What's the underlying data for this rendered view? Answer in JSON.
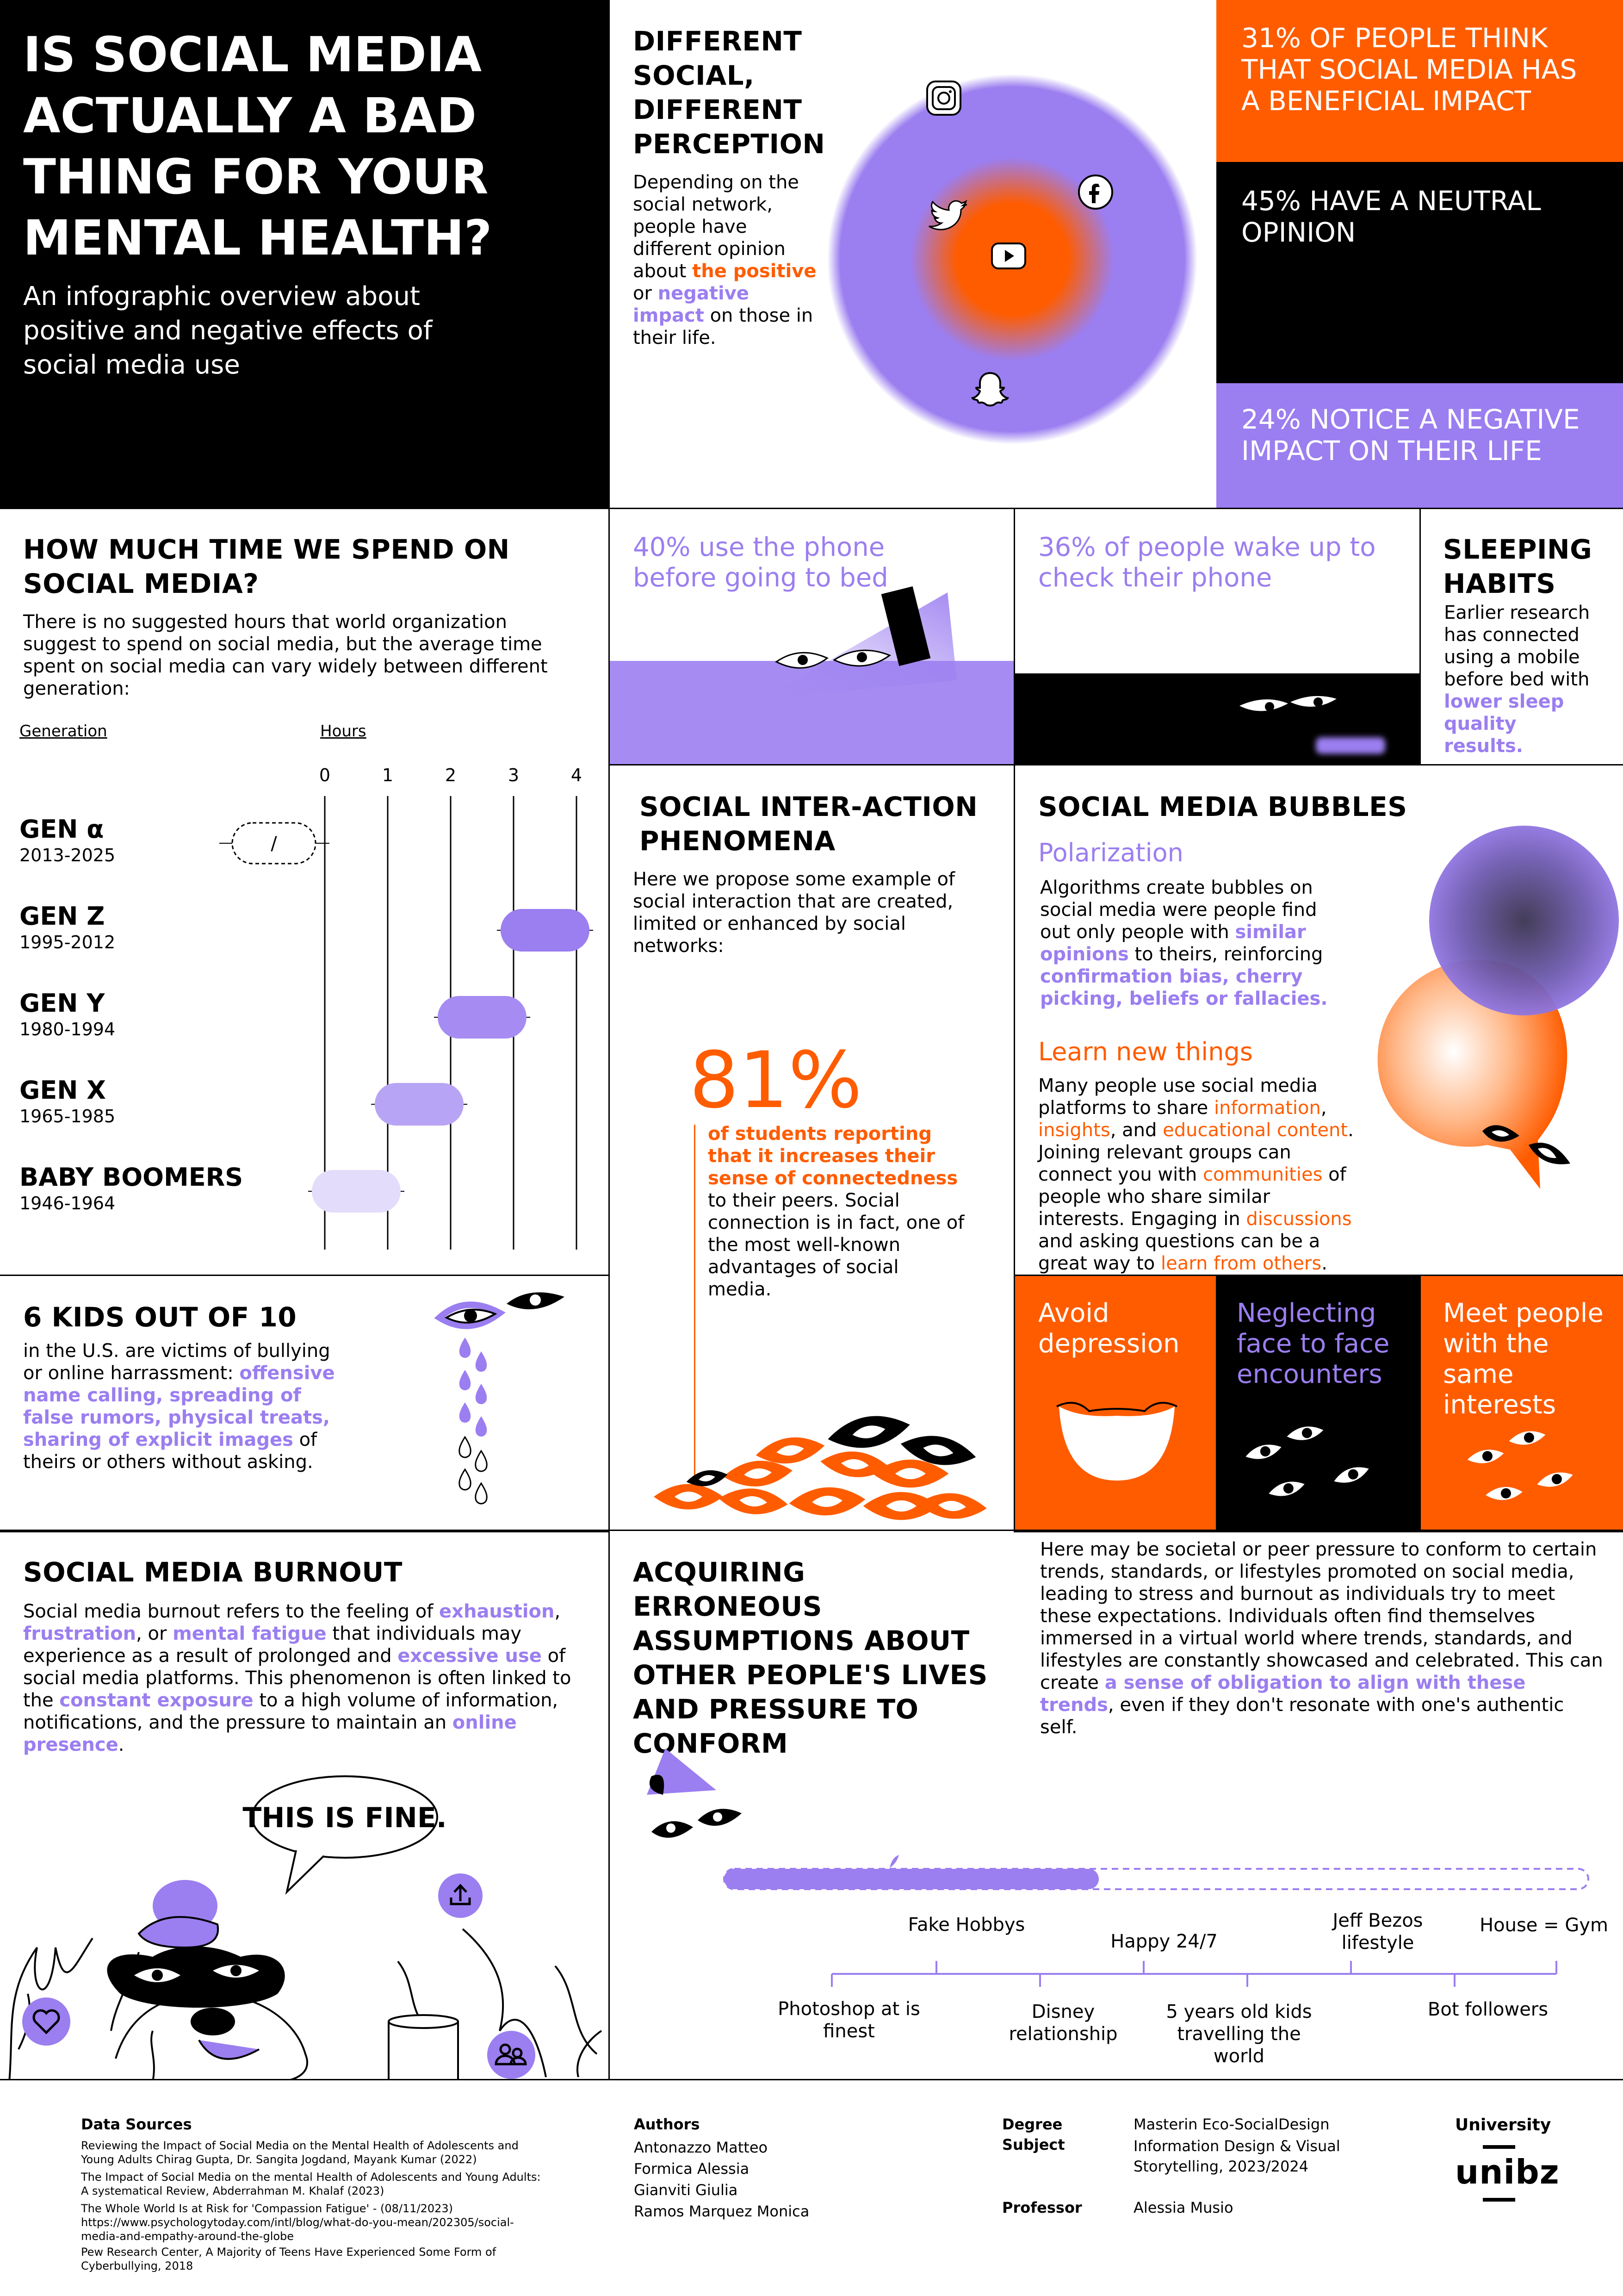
{
  "title": "IS SOCIAL MEDIA ACTUALLY A BAD THING FOR YOUR MENTAL HEALTH?",
  "subtitle": "An infographic overview about positive and negative effects of social media use",
  "perception": {
    "title": "DIFFERENT SOCIAL, DIFFERENT PERCEPTION",
    "text1": "Depending on the social network, people have different opinion about",
    "positive": "the positive",
    "or": " or ",
    "negative": "negative impact",
    "text2": " on those in their life."
  },
  "stats": {
    "beneficial": "31% OF PEOPLE THINK THAT SOCIAL MEDIA HAS A BENEFICIAL IMPACT",
    "neutral": "45% HAVE A NEUTRAL OPINION",
    "negative": "24% NOTICE A NEGATIVE IMPACT ON THEIR LIFE"
  },
  "time": {
    "title": "HOW MUCH TIME WE SPEND ON SOCIAL MEDIA?",
    "text": "There is no suggested hours that world organization suggest to spend on social media, but the average time spent on social media can vary widely between different generation:",
    "col_generation": "Generation",
    "col_hours": "Hours",
    "none_label": "/"
  },
  "chart_data": {
    "type": "bar",
    "xlabel": "Hours",
    "xlim": [
      0,
      4
    ],
    "ticks": [
      0,
      1,
      2,
      3,
      4
    ],
    "rows": [
      {
        "name": "GEN α",
        "years": "2013-2025",
        "range": null
      },
      {
        "name": "GEN Z",
        "years": "1995-2012",
        "range": [
          3,
          4
        ]
      },
      {
        "name": "GEN Y",
        "years": "1980-1994",
        "range": [
          2,
          3
        ]
      },
      {
        "name": "GEN X",
        "years": "1965-1985",
        "range": [
          1,
          2
        ]
      },
      {
        "name": "BABY BOOMERS",
        "years": "1946-1964",
        "range": [
          0,
          1
        ]
      }
    ],
    "colors": [
      "#9B7EF0",
      "#A68CF2",
      "#B8A4F4",
      "#E3DCFA"
    ]
  },
  "phone": {
    "bed": "40% use the phone before going to bed",
    "wake": "36% of people wake up to check their phone"
  },
  "sleep": {
    "title": "SLEEPING HABITS",
    "text": "Earlier research has connected using a mobile before bed with ",
    "hl": "lower sleep quality results."
  },
  "interaction": {
    "title": "SOCIAL INTER-ACTION PHENOMENA",
    "text": "Here we propose some example of social interaction that are created, limited or enhanced by social networks:",
    "percent": "81%",
    "hl": "of students reporting that it increases their sense of connectedness",
    "text2": " to their peers. Social connection is in fact, one of the most well-known advantages of social media."
  },
  "bubbles": {
    "title": "SOCIAL MEDIA BUBBLES",
    "polarization": "Polarization",
    "p1a": "Algorithms create bubbles on social media were people find out only  people with ",
    "p1b": "similar opinions",
    "p1c": " to theirs, reinforcing ",
    "p1d": "confirmation bias, cherry picking, beliefs or fallacies.",
    "learn": "Learn new things",
    "p2a": "Many people use social media platforms to  share ",
    "p2b": "information",
    "p2c": ", ",
    "p2d": "insights",
    "p2e": ", and ",
    "p2f": "educational content",
    "p2g": ". Joining relevant groups can connect you with ",
    "p2h": "communities",
    "p2i": " of people who share similar interests. Engaging in ",
    "p2j": "discussions",
    "p2k": " and asking questions can be a great way to ",
    "p2l": "learn from others",
    "p2m": "."
  },
  "kids": {
    "title": "6 KIDS OUT OF 10",
    "text1": "in the U.S. are victims of bullying or online harrassment: ",
    "hl": "offensive name calling, spreading of false rumors, physical treats, sharing of explicit images",
    "text2": " of theirs or others without asking."
  },
  "effects": {
    "depression": "Avoid depression",
    "neglect": "Neglecting face to face encounters",
    "meet": "Meet people with the same interests"
  },
  "burnout": {
    "title": "SOCIAL MEDIA BURNOUT",
    "t1": "Social media burnout refers to the feeling of ",
    "h1": "exhaustion",
    "t2": ", ",
    "h2": "frustration",
    "t3": ", or ",
    "h3": "mental fatigue",
    "t4": " that individuals may experience as a result of prolonged and ",
    "h4": "excessive use",
    "t5": " of social media platforms. This phenomenon is often linked to the ",
    "h5": "constant exposure",
    "t6": " to a high volume of information, notifications, and the pressure to maintain an ",
    "h6": "online presence",
    "t7": ".",
    "bubble": "THIS IS FINE."
  },
  "assumptions": {
    "title": "ACQUIRING ERRONEOUS ASSUMPTIONS ABOUT OTHER PEOPLE'S LIVES AND PRESSURE TO CONFORM",
    "t1": "Here may be societal or peer pressure to conform to certain trends, standards, or lifestyles promoted on social media, leading to stress and burnout as individuals try to meet these expectations. Individuals often find themselves immersed in a virtual world where trends, standards, and lifestyles are constantly showcased and celebrated. This can create ",
    "hl": "a sense of obligation to align with these trends",
    "t2": ", even if they don't resonate with one's authentic self.",
    "labels_top": [
      "Fake Hobbys",
      "Happy 24/7",
      "Jeff Bezos lifestyle",
      "House = Gym"
    ],
    "labels_bottom": [
      "Photoshop at is finest",
      "Disney relationship",
      "5 years old kids travelling the world",
      "Bot followers"
    ]
  },
  "footer": {
    "sources_title": "Data Sources",
    "sources": [
      "Reviewing the Impact of Social Media on the Mental Health of Adolescents and Young Adults Chirag Gupta, Dr. Sangita Jogdand, Mayank Kumar (2022)",
      "The Impact of Social Media on the mental Health of Adolescents and Young Adults: A systematical Review, Abderrahman M. Khalaf  (2023)",
      "The Whole World Is at Risk for 'Compassion Fatigue' - (08/11/2023) https://www.psychologytoday.com/intl/blog/what-do-you-mean/202305/social-media-and-empathy-around-the-globe",
      "Pew Research Center, A Majority of Teens Have Experienced Some Form of Cyberbullying, 2018"
    ],
    "authors_title": "Authors",
    "authors": [
      "Antonazzo Matteo",
      "Formica Alessia",
      "Gianviti Giulia",
      "Ramos Marquez Monica"
    ],
    "degree_label": "Degree",
    "subject_label": "Subject",
    "degree": "Masterin Eco-SocialDesign",
    "subject": "Information Design & Visual Storytelling, 2023/2024",
    "professor_label": "Professor",
    "professor": "Alessia Musio",
    "university_label": "University",
    "university": "unibz"
  },
  "colors": {
    "orange": "#FF5C00",
    "lavender": "#9B7EF0",
    "black": "#000000"
  }
}
